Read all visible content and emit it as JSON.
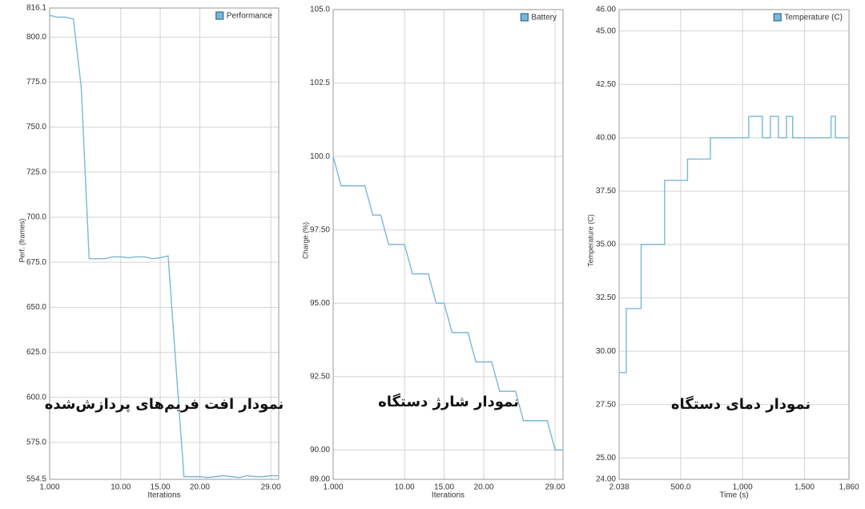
{
  "chart_data": [
    {
      "type": "line",
      "xlabel": "Iterations",
      "ylabel": "Perf. (frames)",
      "annotation": "نمودار افت فریم‌های پردازش‌شده",
      "legend": "upper right",
      "grid": true,
      "x": [
        1,
        2,
        3,
        4,
        5,
        6,
        7,
        8,
        9,
        10,
        11,
        12,
        13,
        14,
        15,
        16,
        17,
        18,
        19,
        20,
        21,
        22,
        23,
        24,
        25,
        26,
        27,
        28,
        29,
        30
      ],
      "series": [
        {
          "name": "Performance",
          "color": "#7ab8d6",
          "values": [
            812,
            811,
            811,
            810,
            772,
            677,
            677,
            677,
            678,
            678,
            677.5,
            678,
            678,
            677,
            677.5,
            678.5,
            617,
            556,
            556,
            556,
            555.5,
            556,
            556.5,
            556,
            555.5,
            556.5,
            556,
            556,
            556.5,
            556.5
          ]
        }
      ],
      "xlim": [
        1,
        30
      ],
      "ylim": [
        554.5,
        816.1
      ],
      "xticks": [
        {
          "value": 1,
          "label": "1.000"
        },
        {
          "value": 10,
          "label": "10.00"
        },
        {
          "value": 15,
          "label": "15.00"
        },
        {
          "value": 20,
          "label": "20.00"
        },
        {
          "value": 29,
          "label": "29.00"
        }
      ],
      "yticks": [
        816.1,
        {
          "value": 800,
          "label": "800.0"
        },
        {
          "value": 775,
          "label": "775.0"
        },
        {
          "value": 750,
          "label": "750.0"
        },
        {
          "value": 725,
          "label": "725.0"
        },
        {
          "value": 700,
          "label": "700.0"
        },
        {
          "value": 675,
          "label": "675.0"
        },
        {
          "value": 650,
          "label": "650.0"
        },
        {
          "value": 625,
          "label": "625.0"
        },
        {
          "value": 600,
          "label": "600.0"
        },
        {
          "value": 575,
          "label": "575.0"
        },
        554.5
      ]
    },
    {
      "type": "line",
      "xlabel": "Iterations",
      "ylabel": "Charge (%)",
      "annotation": "نمودار شارژ دستگاه",
      "legend": "upper right",
      "grid": true,
      "x": [
        1,
        2,
        3,
        4,
        5,
        6,
        7,
        8,
        9,
        10,
        11,
        12,
        13,
        14,
        15,
        16,
        17,
        18,
        19,
        20,
        21,
        22,
        23,
        24,
        25,
        26,
        27,
        28,
        29,
        30
      ],
      "series": [
        {
          "name": "Battery",
          "color": "#7ab8d6",
          "values": [
            100,
            99,
            99,
            99,
            99,
            98,
            98,
            97,
            97,
            97,
            96,
            96,
            96,
            95,
            95,
            94,
            94,
            94,
            93,
            93,
            93,
            92,
            92,
            92,
            91,
            91,
            91,
            91,
            90,
            90
          ]
        }
      ],
      "xlim": [
        1,
        30
      ],
      "ylim": [
        89,
        105
      ],
      "xticks": [
        {
          "value": 1,
          "label": "1.000"
        },
        {
          "value": 10,
          "label": "10.00"
        },
        {
          "value": 15,
          "label": "15.00"
        },
        {
          "value": 20,
          "label": "20.00"
        },
        {
          "value": 29,
          "label": "29.00"
        }
      ],
      "yticks": [
        {
          "value": 105,
          "label": "105.0"
        },
        {
          "value": 102.5,
          "label": "102.5"
        },
        {
          "value": 100,
          "label": "100.0"
        },
        {
          "value": 97.5,
          "label": "97.50"
        },
        {
          "value": 95,
          "label": "95.00"
        },
        {
          "value": 92.5,
          "label": "92.50"
        },
        {
          "value": 90,
          "label": "90.00"
        },
        {
          "value": 89,
          "label": "89.00"
        }
      ]
    },
    {
      "type": "line",
      "xlabel": "Time (s)",
      "ylabel": "Temperature (C)",
      "annotation": "نمودار دمای دستگاه",
      "legend": "upper right",
      "grid": true,
      "x": [
        2.038,
        60,
        60,
        180,
        180,
        370,
        370,
        555,
        555,
        740,
        740,
        1050,
        1050,
        1160,
        1160,
        1225,
        1225,
        1290,
        1290,
        1355,
        1355,
        1405,
        1405,
        1715,
        1715,
        1750,
        1750,
        1860
      ],
      "series": [
        {
          "name": "Temperature (C)",
          "color": "#7ab8d6",
          "values": [
            29,
            29,
            32,
            32,
            35,
            35,
            38,
            38,
            39,
            39,
            40,
            40,
            41,
            41,
            40,
            40,
            41,
            41,
            40,
            40,
            41,
            41,
            40,
            40,
            41,
            41,
            40,
            40
          ]
        }
      ],
      "xlim": [
        2.038,
        1860
      ],
      "ylim": [
        24,
        46
      ],
      "xticks": [
        2.038,
        {
          "value": 500,
          "label": "500.0"
        },
        {
          "value": 1000,
          "label": "1,000"
        },
        {
          "value": 1500,
          "label": "1,500"
        },
        {
          "value": 1860,
          "label": "1,860"
        }
      ],
      "yticks": [
        {
          "value": 46,
          "label": "46.00"
        },
        {
          "value": 45,
          "label": "45.00"
        },
        {
          "value": 42.5,
          "label": "42.50"
        },
        {
          "value": 40,
          "label": "40.00"
        },
        {
          "value": 37.5,
          "label": "37.50"
        },
        {
          "value": 35,
          "label": "35.00"
        },
        {
          "value": 32.5,
          "label": "32.50"
        },
        {
          "value": 30,
          "label": "30.00"
        },
        {
          "value": 27.5,
          "label": "27.50"
        },
        {
          "value": 25,
          "label": "25.00"
        },
        {
          "value": 24,
          "label": "24.00"
        }
      ]
    }
  ]
}
